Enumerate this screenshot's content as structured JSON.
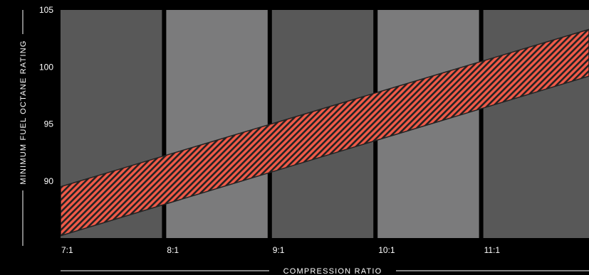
{
  "chart_data": {
    "type": "area",
    "title": "",
    "xlabel": "COMPRESSION RATIO",
    "ylabel": "MINIMUM FUEL OCTANE RATING",
    "categories": [
      "7:1",
      "8:1",
      "9:1",
      "10:1",
      "11:1"
    ],
    "x_range": [
      7,
      12
    ],
    "ylim": [
      85,
      105
    ],
    "y_ticks": [
      90,
      95,
      100,
      105
    ],
    "grid": false,
    "band": {
      "x": [
        7,
        12
      ],
      "lower": [
        85.2,
        99.2
      ],
      "upper": [
        89.5,
        103.3
      ]
    },
    "colors": {
      "background": "#000000",
      "column_dark": "#585858",
      "column_light": "#7b7b7c",
      "band_fill": "#f05a48",
      "band_hatch": "#222222"
    }
  }
}
